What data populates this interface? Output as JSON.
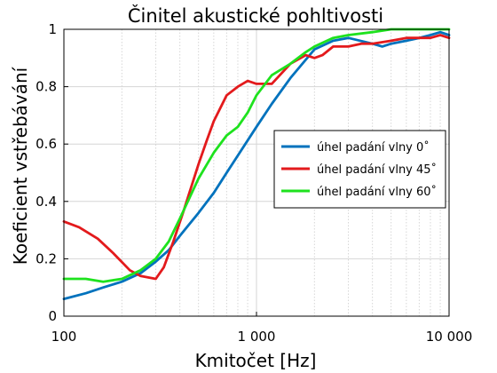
{
  "chart_data": {
    "type": "line",
    "title": "Činitel akustické pohltivosti",
    "xlabel": "Kmitočet [Hz]",
    "ylabel": "Koeficient vstřebávání",
    "xscale": "log",
    "xlim": [
      100,
      10000
    ],
    "ylim": [
      0,
      1
    ],
    "x_ticks": [
      {
        "value": 100,
        "label": "100"
      },
      {
        "value": 1000,
        "label": "1 000"
      },
      {
        "value": 10000,
        "label": "10 000"
      }
    ],
    "y_ticks": [
      {
        "value": 0,
        "label": "0"
      },
      {
        "value": 0.2,
        "label": "0.2"
      },
      {
        "value": 0.4,
        "label": "0.4"
      },
      {
        "value": 0.6,
        "label": "0.6"
      },
      {
        "value": 0.8,
        "label": "0.8"
      },
      {
        "value": 1,
        "label": "1"
      }
    ],
    "grid": true,
    "legend_position": "right",
    "series": [
      {
        "name": "úhel padání vlny 0˚",
        "color": "#0072BD",
        "x": [
          100,
          130,
          160,
          200,
          250,
          300,
          350,
          400,
          500,
          600,
          700,
          800,
          1000,
          1200,
          1500,
          2000,
          2500,
          3000,
          4000,
          4500,
          5000,
          6000,
          7000,
          8000,
          9000,
          10000
        ],
        "y": [
          0.06,
          0.08,
          0.1,
          0.12,
          0.15,
          0.19,
          0.23,
          0.28,
          0.36,
          0.43,
          0.5,
          0.56,
          0.66,
          0.74,
          0.83,
          0.93,
          0.96,
          0.97,
          0.95,
          0.94,
          0.95,
          0.96,
          0.97,
          0.98,
          0.99,
          0.98
        ]
      },
      {
        "name": "úhel padání vlny 45˚",
        "color": "#E31A1C",
        "x": [
          100,
          120,
          150,
          180,
          220,
          250,
          300,
          330,
          370,
          420,
          500,
          550,
          600,
          700,
          800,
          900,
          1000,
          1200,
          1500,
          1800,
          2000,
          2200,
          2500,
          3000,
          3500,
          4000,
          5000,
          6000,
          7000,
          8000,
          9000,
          10000
        ],
        "y": [
          0.33,
          0.31,
          0.27,
          0.22,
          0.16,
          0.14,
          0.13,
          0.17,
          0.26,
          0.37,
          0.53,
          0.61,
          0.68,
          0.77,
          0.8,
          0.82,
          0.81,
          0.81,
          0.88,
          0.91,
          0.9,
          0.91,
          0.94,
          0.94,
          0.95,
          0.95,
          0.96,
          0.97,
          0.97,
          0.97,
          0.98,
          0.97
        ]
      },
      {
        "name": "úhel padání vlny 60˚",
        "color": "#1EE21E",
        "x": [
          100,
          130,
          160,
          200,
          250,
          300,
          350,
          400,
          500,
          600,
          700,
          800,
          900,
          1000,
          1200,
          1500,
          1800,
          2000,
          2500,
          3000,
          4000,
          5000,
          6000,
          8000,
          10000
        ],
        "y": [
          0.13,
          0.13,
          0.12,
          0.13,
          0.16,
          0.2,
          0.26,
          0.34,
          0.48,
          0.57,
          0.63,
          0.66,
          0.71,
          0.77,
          0.84,
          0.88,
          0.92,
          0.94,
          0.97,
          0.98,
          0.99,
          1.0,
          1.0,
          1.0,
          1.0
        ]
      }
    ]
  }
}
